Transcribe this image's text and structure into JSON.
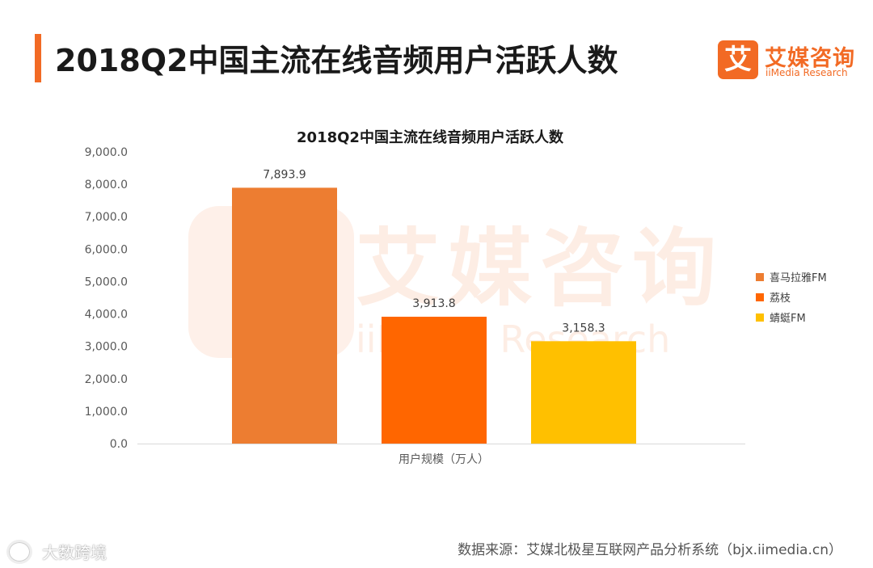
{
  "page_title": "2018Q2中国主流在线音频用户活跃人数",
  "logo": {
    "icon_char": "艾",
    "cn": "艾媒咨询",
    "en": "iiMedia Research"
  },
  "watermark": {
    "cn": "艾媒咨询",
    "en": "iiMedia Research",
    "color": "#f26a24"
  },
  "footer": {
    "source": "数据来源：艾媒北极星互联网产品分析系统（bjx.iimedia.cn）",
    "weibo_label": "大数跨境"
  },
  "colors": {
    "accent": "#f26a24"
  },
  "chart_data": {
    "type": "bar",
    "title": "2018Q2中国主流在线音频用户活跃人数",
    "xlabel": "用户规模（万人）",
    "ylabel": "",
    "ylim": [
      0,
      9000
    ],
    "yticks": [
      "0.0",
      "1,000.0",
      "2,000.0",
      "3,000.0",
      "4,000.0",
      "5,000.0",
      "6,000.0",
      "7,000.0",
      "8,000.0",
      "9,000.0"
    ],
    "grid": false,
    "legend_position": "right",
    "series": [
      {
        "name": "喜马拉雅FM",
        "values": [
          7893.9
        ],
        "label": "7,893.9",
        "color": "#ed7d31"
      },
      {
        "name": "荔枝",
        "values": [
          3913.8
        ],
        "label": "3,913.8",
        "color": "#ff6600"
      },
      {
        "name": "蜻蜓FM",
        "values": [
          3158.3
        ],
        "label": "3,158.3",
        "color": "#ffc000"
      }
    ]
  }
}
